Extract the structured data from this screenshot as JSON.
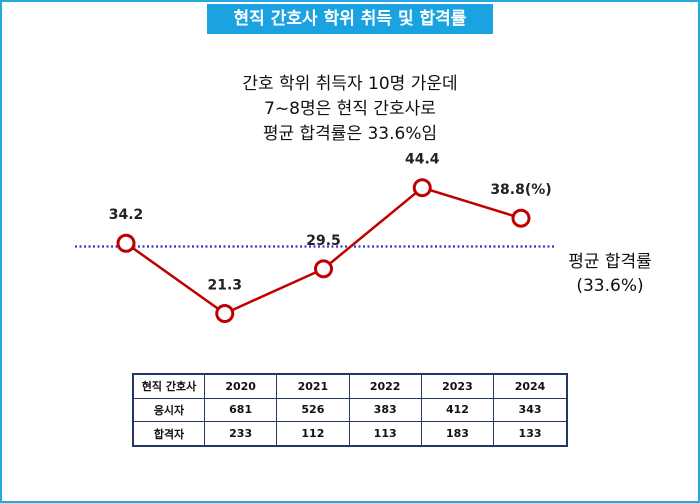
{
  "title": "현직 간호사 학위 취득 및 합격률",
  "subtitle_lines": [
    "간호 학위 취득자 10명 가운데",
    "7~8명은 현직 간호사로",
    "평균 합격률은 33.6%임"
  ],
  "colors": {
    "banner": "#1aa3e0",
    "line": "#c00000",
    "average": "#3333cc",
    "border": "#29a8e0",
    "table_border": "#1f3864"
  },
  "chart_data": {
    "type": "line",
    "title": "현직 간호사 학위 취득 및 합격률",
    "categories": [
      "2020",
      "2021",
      "2022",
      "2023",
      "2024"
    ],
    "values": [
      34.2,
      21.3,
      29.5,
      44.4,
      38.8
    ],
    "point_labels": [
      "34.2",
      "21.3",
      "29.5",
      "44.4",
      "38.8(%)"
    ],
    "unit": "%",
    "ylim": [
      10,
      55
    ],
    "average": {
      "value": 33.6,
      "label_line1": "평균 합격률",
      "label_line2": "(33.6%)"
    }
  },
  "table": {
    "corner": "현직 간호사",
    "years": [
      "2020",
      "2021",
      "2022",
      "2023",
      "2024"
    ],
    "rows": [
      {
        "label": "응시자",
        "values": [
          "681",
          "526",
          "383",
          "412",
          "343"
        ]
      },
      {
        "label": "합격자",
        "values": [
          "233",
          "112",
          "113",
          "183",
          "133"
        ]
      }
    ]
  }
}
